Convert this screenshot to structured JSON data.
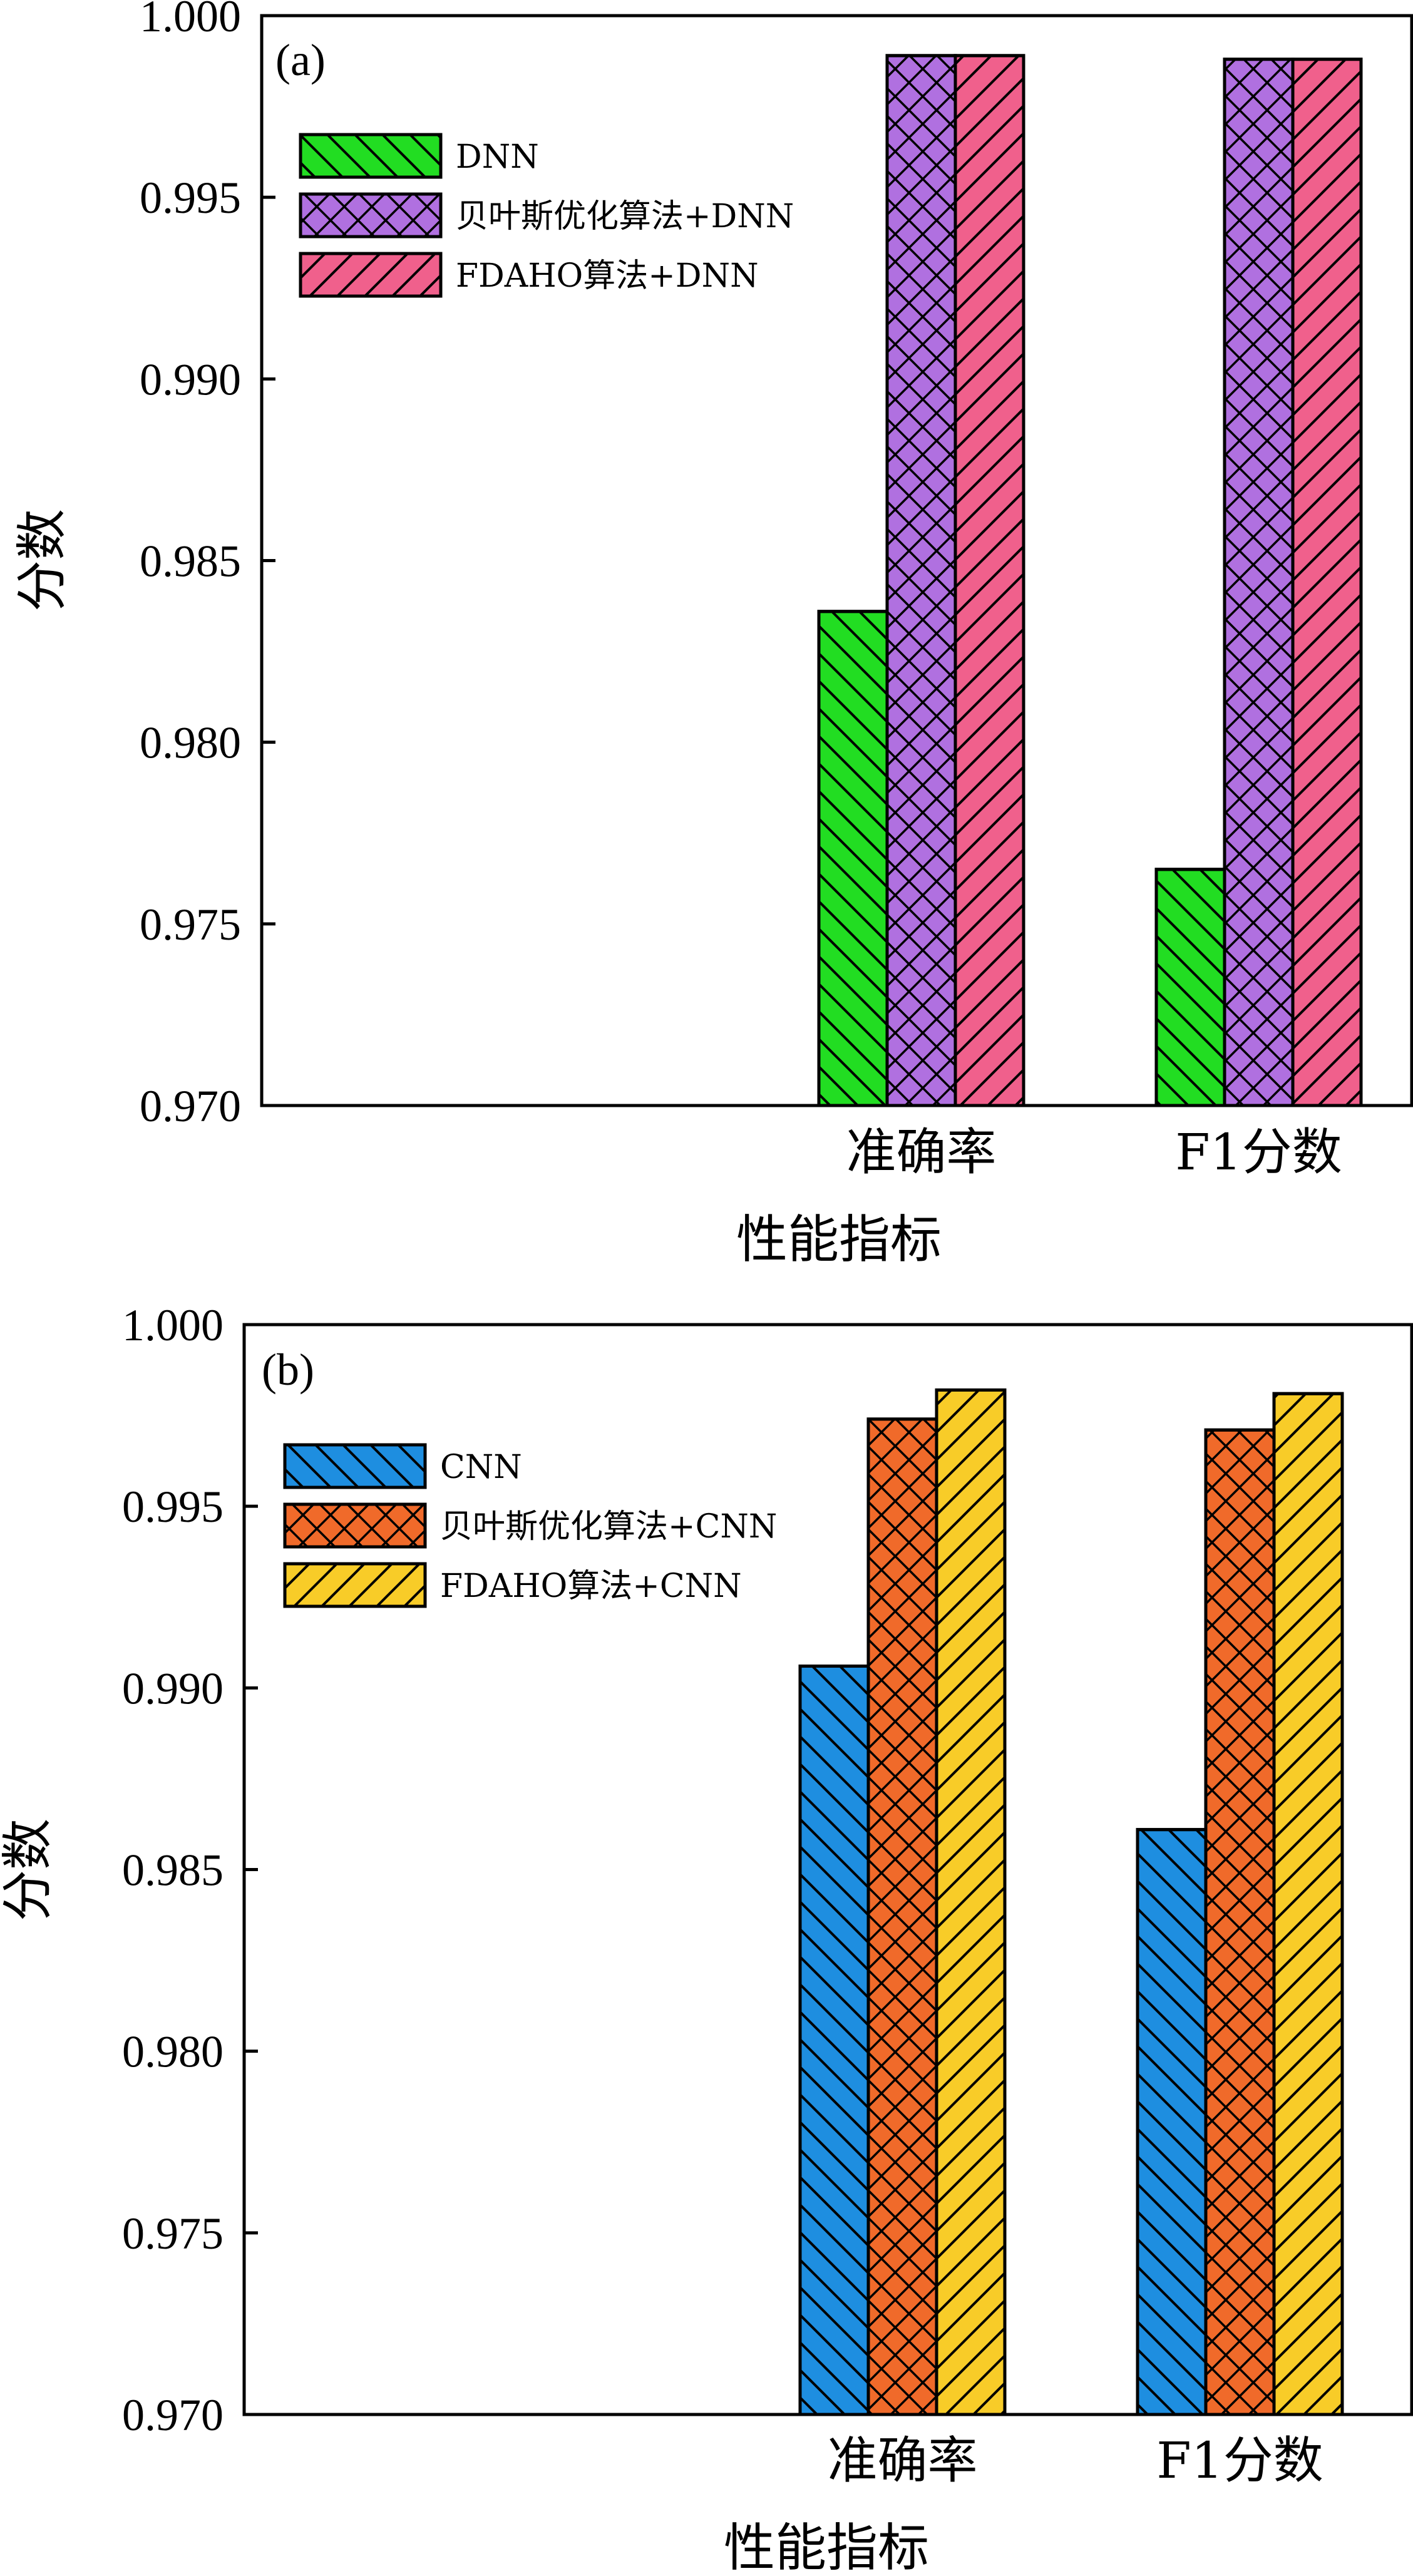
{
  "chart_data": [
    {
      "panel_label": "(a)",
      "type": "bar",
      "xlabel": "性能指标",
      "ylabel": "分数",
      "ylim": [
        0.97,
        1.0
      ],
      "yticks": [
        "0.970",
        "0.975",
        "0.980",
        "0.985",
        "0.990",
        "0.995",
        "1.000"
      ],
      "categories": [
        "准确率",
        "F1分数"
      ],
      "series": [
        {
          "name": "DNN",
          "color": "#22dd22",
          "pattern": "diag-back",
          "values": [
            0.9836,
            0.9765
          ]
        },
        {
          "name": "贝叶斯优化算法+DNN",
          "color": "#b070e0",
          "pattern": "cross",
          "values": [
            0.9989,
            0.9988
          ]
        },
        {
          "name": "FDAHO算法+DNN",
          "color": "#f0608c",
          "pattern": "diag-fwd",
          "values": [
            0.9989,
            0.9988
          ]
        }
      ],
      "legend_position": "top-left"
    },
    {
      "panel_label": "(b)",
      "type": "bar",
      "xlabel": "性能指标",
      "ylabel": "分数",
      "ylim": [
        0.97,
        1.0
      ],
      "yticks": [
        "0.970",
        "0.975",
        "0.980",
        "0.985",
        "0.990",
        "0.995",
        "1.000"
      ],
      "categories": [
        "准确率",
        "F1分数"
      ],
      "series": [
        {
          "name": "CNN",
          "color": "#1e8ee0",
          "pattern": "diag-back",
          "values": [
            0.9906,
            0.9861
          ]
        },
        {
          "name": "贝叶斯优化算法+CNN",
          "color": "#f06a2a",
          "pattern": "cross",
          "values": [
            0.9974,
            0.9971
          ]
        },
        {
          "name": "FDAHO算法+CNN",
          "color": "#f8cc28",
          "pattern": "diag-fwd",
          "values": [
            0.9982,
            0.9981
          ]
        }
      ],
      "legend_position": "top-left"
    }
  ]
}
